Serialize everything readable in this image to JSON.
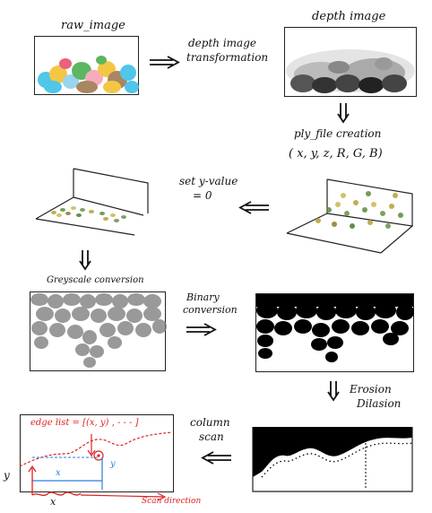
{
  "steps": {
    "raw_image": "raw_image",
    "depth_image": "depth image",
    "depth_transform_line1": "depth image",
    "depth_transform_line2": "transformation",
    "ply_creation": "ply_file creation",
    "ply_fields": "( x, y, z,   R, G, B)",
    "set_y_line1": "set y-value",
    "set_y_line2": "= 0",
    "greyscale": "Greyscale conversion",
    "binary_line1": "Binary",
    "binary_line2": "conversion",
    "erosion_line1": "Erosion",
    "erosion_line2": "Dilasion",
    "column_line1": "column",
    "column_line2": "scan"
  },
  "scan_panel": {
    "edge_list": "edge list = [(x, y) , - - - ]",
    "x_label": "x",
    "y_label": "y",
    "axis_y": "y",
    "axis_x": "x",
    "scan_direction": "Scan direction"
  },
  "colors": {
    "ink": "#111111",
    "annotation_red": "#e02020",
    "annotation_blue": "#2a7de1"
  }
}
